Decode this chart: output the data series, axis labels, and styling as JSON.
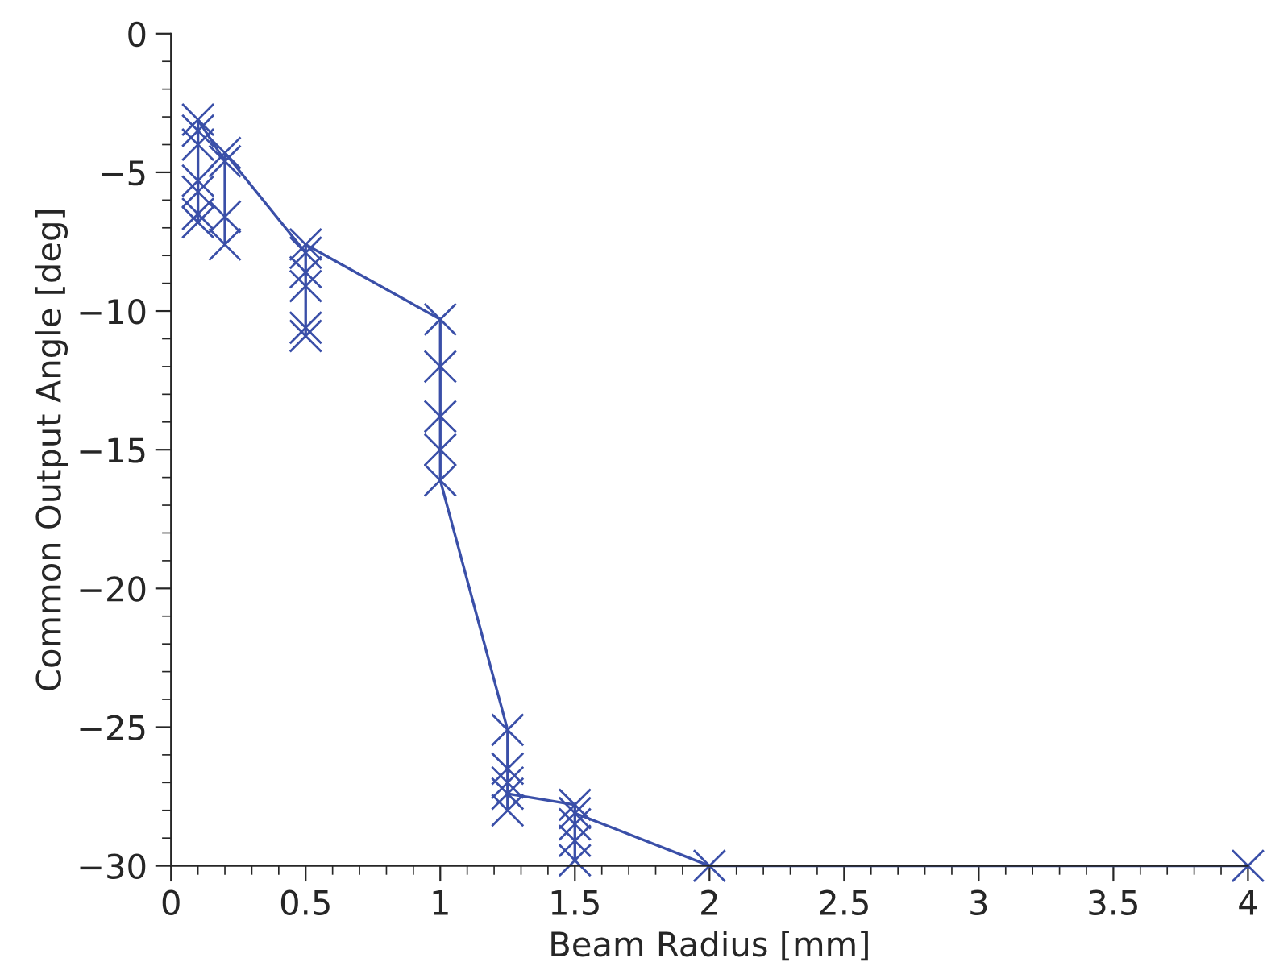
{
  "chart_data": {
    "type": "line",
    "xlabel": "Beam Radius [mm]",
    "ylabel": "Common Output Angle [deg]",
    "xlim": [
      0,
      4
    ],
    "xticks": [
      0,
      0.5,
      1,
      1.5,
      2,
      2.5,
      3,
      3.5,
      4
    ],
    "ylim": [
      -30,
      0
    ],
    "yticks": [
      -30,
      -25,
      -20,
      -15,
      -10,
      -5,
      0
    ],
    "grid": false,
    "legend": false,
    "line_style": "solid",
    "marker": "cross",
    "series": [
      {
        "color": "#3a4fa8",
        "x": [
          0.1,
          0.1,
          0.1,
          0.1,
          0.1,
          0.1,
          0.1,
          0.2,
          0.2,
          0.2,
          0.2,
          0.5,
          0.5,
          0.5,
          0.5,
          0.5,
          0.5,
          1,
          1,
          1,
          1,
          1,
          1.25,
          1.25,
          1.25,
          1.25,
          1.25,
          1.5,
          1.5,
          1.5,
          1.5,
          1.5,
          2,
          4
        ],
        "values": [
          -6.8,
          -6.5,
          -5.7,
          -5.3,
          -4.0,
          -3.5,
          -3.1,
          -4.6,
          -6.6,
          -7.6,
          -4.3,
          -7.9,
          -8.6,
          -9.1,
          -10.6,
          -10.9,
          -7.6,
          -10.3,
          -12.0,
          -13.8,
          -15.0,
          -16.1,
          -25.1,
          -26.5,
          -27.0,
          -28.0,
          -27.4,
          -27.8,
          -28.5,
          -29.1,
          -29.8,
          -28.1,
          -30,
          -30
        ]
      }
    ]
  }
}
